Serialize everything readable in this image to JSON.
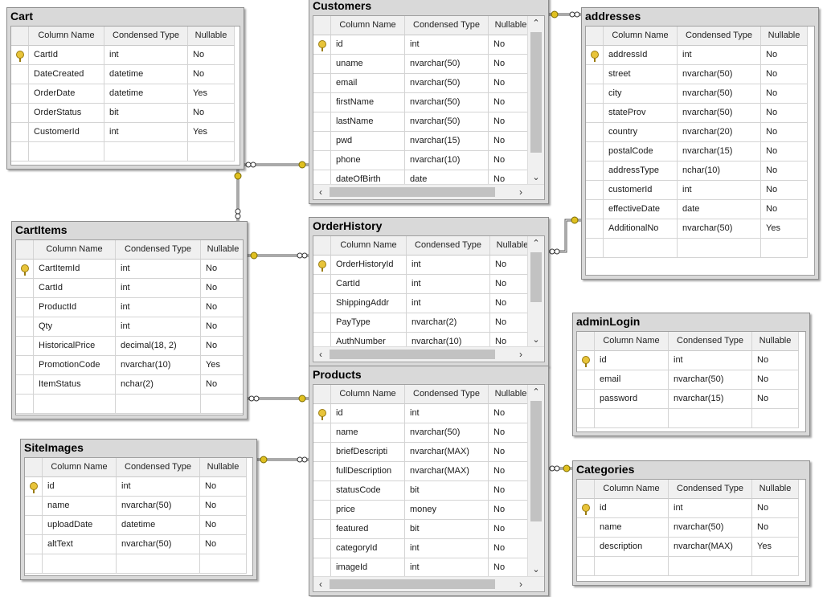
{
  "headers": {
    "name": "Column Name",
    "type": "Condensed Type",
    "nullable": "Nullable"
  },
  "scroll_arrows": {
    "up": "⌃",
    "down": "⌄",
    "left": "‹",
    "right": "›"
  },
  "tables": {
    "cart": {
      "title": "Cart",
      "rows": [
        {
          "pk": true,
          "name": "CartId",
          "type": "int",
          "nullable": "No"
        },
        {
          "pk": false,
          "name": "DateCreated",
          "type": "datetime",
          "nullable": "No"
        },
        {
          "pk": false,
          "name": "OrderDate",
          "type": "datetime",
          "nullable": "Yes"
        },
        {
          "pk": false,
          "name": "OrderStatus",
          "type": "bit",
          "nullable": "No"
        },
        {
          "pk": false,
          "name": "CustomerId",
          "type": "int",
          "nullable": "Yes"
        }
      ]
    },
    "customers": {
      "title": "Customers",
      "rows": [
        {
          "pk": true,
          "name": "id",
          "type": "int",
          "nullable": "No"
        },
        {
          "pk": false,
          "name": "uname",
          "type": "nvarchar(50)",
          "nullable": "No"
        },
        {
          "pk": false,
          "name": "email",
          "type": "nvarchar(50)",
          "nullable": "No"
        },
        {
          "pk": false,
          "name": "firstName",
          "type": "nvarchar(50)",
          "nullable": "No"
        },
        {
          "pk": false,
          "name": "lastName",
          "type": "nvarchar(50)",
          "nullable": "No"
        },
        {
          "pk": false,
          "name": "pwd",
          "type": "nvarchar(15)",
          "nullable": "No"
        },
        {
          "pk": false,
          "name": "phone",
          "type": "nvarchar(10)",
          "nullable": "No"
        },
        {
          "pk": false,
          "name": "dateOfBirth",
          "type": "date",
          "nullable": "No"
        }
      ]
    },
    "addresses": {
      "title": "addresses",
      "rows": [
        {
          "pk": true,
          "name": "addressId",
          "type": "int",
          "nullable": "No"
        },
        {
          "pk": false,
          "name": "street",
          "type": "nvarchar(50)",
          "nullable": "No"
        },
        {
          "pk": false,
          "name": "city",
          "type": "nvarchar(50)",
          "nullable": "No"
        },
        {
          "pk": false,
          "name": "stateProv",
          "type": "nvarchar(50)",
          "nullable": "No"
        },
        {
          "pk": false,
          "name": "country",
          "type": "nvarchar(20)",
          "nullable": "No"
        },
        {
          "pk": false,
          "name": "postalCode",
          "type": "nvarchar(15)",
          "nullable": "No"
        },
        {
          "pk": false,
          "name": "addressType",
          "type": "nchar(10)",
          "nullable": "No"
        },
        {
          "pk": false,
          "name": "customerId",
          "type": "int",
          "nullable": "No"
        },
        {
          "pk": false,
          "name": "effectiveDate",
          "type": "date",
          "nullable": "No"
        },
        {
          "pk": false,
          "name": "AdditionalNo",
          "type": "nvarchar(50)",
          "nullable": "Yes"
        }
      ]
    },
    "cartitems": {
      "title": "CartItems",
      "rows": [
        {
          "pk": true,
          "name": "CartItemId",
          "type": "int",
          "nullable": "No"
        },
        {
          "pk": false,
          "name": "CartId",
          "type": "int",
          "nullable": "No"
        },
        {
          "pk": false,
          "name": "ProductId",
          "type": "int",
          "nullable": "No"
        },
        {
          "pk": false,
          "name": "Qty",
          "type": "int",
          "nullable": "No"
        },
        {
          "pk": false,
          "name": "HistoricalPrice",
          "type": "decimal(18, 2)",
          "nullable": "No"
        },
        {
          "pk": false,
          "name": "PromotionCode",
          "type": "nvarchar(10)",
          "nullable": "Yes"
        },
        {
          "pk": false,
          "name": "ItemStatus",
          "type": "nchar(2)",
          "nullable": "No"
        }
      ]
    },
    "orderhistory": {
      "title": "OrderHistory",
      "rows": [
        {
          "pk": true,
          "name": "OrderHistoryId",
          "type": "int",
          "nullable": "No"
        },
        {
          "pk": false,
          "name": "CartId",
          "type": "int",
          "nullable": "No"
        },
        {
          "pk": false,
          "name": "ShippingAddr",
          "type": "int",
          "nullable": "No"
        },
        {
          "pk": false,
          "name": "PayType",
          "type": "nvarchar(2)",
          "nullable": "No"
        },
        {
          "pk": false,
          "name": "AuthNumber",
          "type": "nvarchar(10)",
          "nullable": "No"
        }
      ]
    },
    "adminlogin": {
      "title": "adminLogin",
      "rows": [
        {
          "pk": true,
          "name": "id",
          "type": "int",
          "nullable": "No"
        },
        {
          "pk": false,
          "name": "email",
          "type": "nvarchar(50)",
          "nullable": "No"
        },
        {
          "pk": false,
          "name": "password",
          "type": "nvarchar(15)",
          "nullable": "No"
        }
      ]
    },
    "products": {
      "title": "Products",
      "rows": [
        {
          "pk": true,
          "name": "id",
          "type": "int",
          "nullable": "No"
        },
        {
          "pk": false,
          "name": "name",
          "type": "nvarchar(50)",
          "nullable": "No"
        },
        {
          "pk": false,
          "name": "briefDescripti",
          "type": "nvarchar(MAX)",
          "nullable": "No"
        },
        {
          "pk": false,
          "name": "fullDescription",
          "type": "nvarchar(MAX)",
          "nullable": "No"
        },
        {
          "pk": false,
          "name": "statusCode",
          "type": "bit",
          "nullable": "No"
        },
        {
          "pk": false,
          "name": "price",
          "type": "money",
          "nullable": "No"
        },
        {
          "pk": false,
          "name": "featured",
          "type": "bit",
          "nullable": "No"
        },
        {
          "pk": false,
          "name": "categoryId",
          "type": "int",
          "nullable": "No"
        },
        {
          "pk": false,
          "name": "imageId",
          "type": "int",
          "nullable": "No"
        }
      ]
    },
    "siteimages": {
      "title": "SiteImages",
      "rows": [
        {
          "pk": true,
          "name": "id",
          "type": "int",
          "nullable": "No"
        },
        {
          "pk": false,
          "name": "name",
          "type": "nvarchar(50)",
          "nullable": "No"
        },
        {
          "pk": false,
          "name": "uploadDate",
          "type": "datetime",
          "nullable": "No"
        },
        {
          "pk": false,
          "name": "altText",
          "type": "nvarchar(50)",
          "nullable": "No"
        }
      ]
    },
    "categories": {
      "title": "Categories",
      "rows": [
        {
          "pk": true,
          "name": "id",
          "type": "int",
          "nullable": "No"
        },
        {
          "pk": false,
          "name": "name",
          "type": "nvarchar(50)",
          "nullable": "No"
        },
        {
          "pk": false,
          "name": "description",
          "type": "nvarchar(MAX)",
          "nullable": "Yes"
        }
      ]
    }
  },
  "relationships": [
    {
      "from": "Cart",
      "to": "Customers",
      "one_end": "Customers",
      "many_end": "Cart"
    },
    {
      "from": "CartItems",
      "to": "Cart",
      "one_end": "Cart",
      "many_end": "CartItems"
    },
    {
      "from": "addresses",
      "to": "Customers",
      "one_end": "Customers",
      "many_end": "addresses"
    },
    {
      "from": "OrderHistory",
      "to": "CartItems",
      "one_end": "CartItems",
      "many_end": "OrderHistory"
    },
    {
      "from": "OrderHistory",
      "to": "addresses",
      "one_end": "addresses",
      "many_end": "OrderHistory"
    },
    {
      "from": "CartItems",
      "to": "Products",
      "one_end": "Products",
      "many_end": "CartItems"
    },
    {
      "from": "Products",
      "to": "SiteImages",
      "one_end": "SiteImages",
      "many_end": "Products"
    },
    {
      "from": "Products",
      "to": "Categories",
      "one_end": "Categories",
      "many_end": "Products"
    }
  ],
  "colors": {
    "key_icon": "#e8c43a",
    "connector": "#555555",
    "one_end": "#e0c020",
    "frame": "#d9d9d9"
  }
}
